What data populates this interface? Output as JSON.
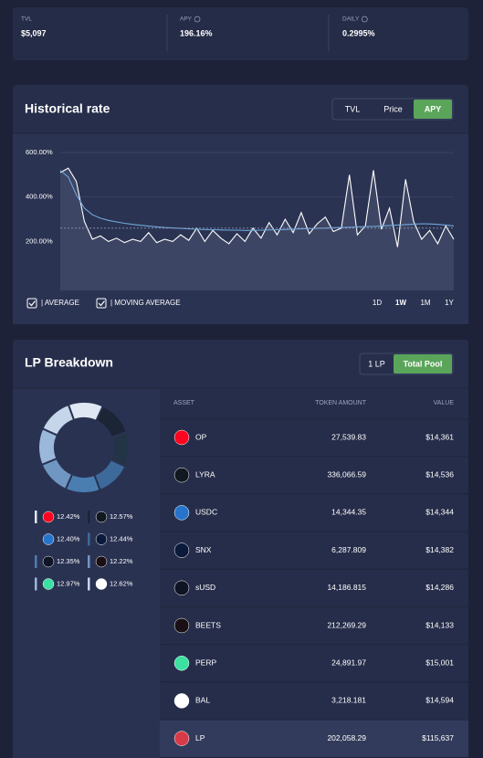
{
  "stats": [
    {
      "label": "TVL",
      "value": "$5,097"
    },
    {
      "label": "APY",
      "value": "196.16%"
    },
    {
      "label": "DAILY",
      "value": "0.2995%"
    }
  ],
  "historical_rate": {
    "title": "Historical rate",
    "tabs": [
      "TVL",
      "Price",
      "APY"
    ],
    "active_tab": 2,
    "ranges": [
      "1D",
      "1W",
      "1M",
      "1Y"
    ],
    "active_range": 1
  },
  "chart_data": [
    {
      "type": "line",
      "ylim": [
        -20,
        670
      ],
      "yticks": [
        {
          "value": 200,
          "label": "200.00%"
        },
        {
          "value": 400,
          "label": "400.00%"
        },
        {
          "value": 600,
          "label": "600.00%"
        }
      ],
      "grid": true,
      "average": {
        "label": "| AVERAGE",
        "value": 260,
        "color": "#8a93b0"
      },
      "series": [
        {
          "color": "#ffffff",
          "fill": "#3d4564",
          "values": [
            510,
            530,
            470,
            290,
            210,
            225,
            200,
            215,
            195,
            210,
            200,
            240,
            195,
            210,
            200,
            230,
            205,
            260,
            200,
            250,
            215,
            190,
            235,
            200,
            260,
            215,
            285,
            230,
            300,
            240,
            330,
            235,
            280,
            310,
            245,
            260,
            500,
            230,
            270,
            520,
            255,
            350,
            175,
            480,
            290,
            210,
            250,
            190,
            270,
            210
          ]
        },
        {
          "name": "| MOVING AVERAGE",
          "color": "#6fa8dc",
          "values": [
            520,
            490,
            410,
            350,
            320,
            305,
            295,
            288,
            282,
            277,
            273,
            269,
            266,
            263,
            261,
            259,
            257,
            255,
            254,
            253,
            252,
            251,
            251,
            250,
            250,
            251,
            252,
            253,
            254,
            256,
            257,
            258,
            259,
            260,
            262,
            263,
            264,
            266,
            267,
            268,
            270,
            272,
            274,
            276,
            278,
            280,
            279,
            277,
            274,
            270
          ]
        }
      ]
    },
    {
      "type": "pie",
      "categories": [
        "OP",
        "LYRA",
        "USDC",
        "SNX",
        "sUSD",
        "BEETS",
        "PERP",
        "BAL"
      ],
      "values": [
        12.42,
        12.57,
        12.4,
        12.44,
        12.35,
        12.22,
        12.97,
        12.62
      ],
      "value_labels": [
        "12.42%",
        "12.57%",
        "12.40%",
        "12.44%",
        "12.35%",
        "12.22%",
        "12.97%",
        "12.62%"
      ],
      "colors": [
        "#dfe7f2",
        "#1b2535",
        "#243447",
        "#3d6a9a",
        "#4b7eb0",
        "#6f97c2",
        "#9ab8da",
        "#c5d5ea"
      ]
    }
  ],
  "lp_breakdown": {
    "title": "LP Breakdown",
    "tabs": [
      "1 LP",
      "Total Pool"
    ],
    "active_tab": 1,
    "table": {
      "header": [
        "ASSET",
        "TOKEN AMOUNT",
        "VALUE"
      ],
      "rows": [
        [
          "OP",
          "27,539.83",
          "$14,361"
        ],
        [
          "LYRA",
          "336,066.59",
          "$14,536"
        ],
        [
          "USDC",
          "14,344.35",
          "$14,344"
        ],
        [
          "SNX",
          "6,287.809",
          "$14,382"
        ],
        [
          "sUSD",
          "14,186.815",
          "$14,286"
        ],
        [
          "BEETS",
          "212,269.29",
          "$14,133"
        ],
        [
          "PERP",
          "24,891.97",
          "$15,001"
        ],
        [
          "BAL",
          "3,218.181",
          "$14,594"
        ],
        [
          "LP",
          "202,058.29",
          "$115,637"
        ]
      ]
    }
  }
}
